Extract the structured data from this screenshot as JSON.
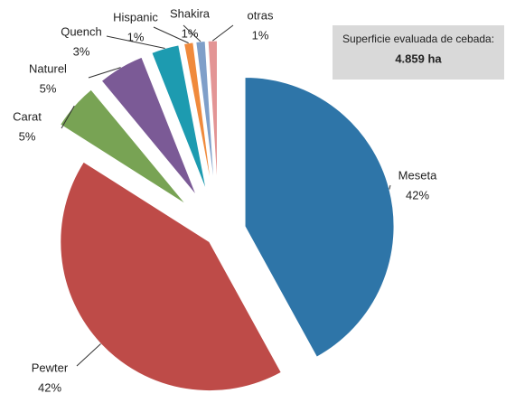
{
  "chart_data": {
    "type": "pie",
    "categories": [
      "Meseta",
      "Pewter",
      "Carat",
      "Naturel",
      "Quench",
      "Hispanic",
      "Shakira",
      "otras"
    ],
    "values": [
      42,
      42,
      5,
      5,
      3,
      1,
      1,
      1
    ],
    "value_labels": [
      "42%",
      "42%",
      "5%",
      "5%",
      "3%",
      "1%",
      "1%",
      "1%"
    ],
    "colors": [
      "#2e75a8",
      "#be4b48",
      "#78a354",
      "#7b5a96",
      "#1d9bb0",
      "#f08a3c",
      "#7f9fc9",
      "#e39595"
    ],
    "annotation": {
      "title": "Superficie evaluada de cebada:",
      "value": "4.859 ha"
    }
  }
}
